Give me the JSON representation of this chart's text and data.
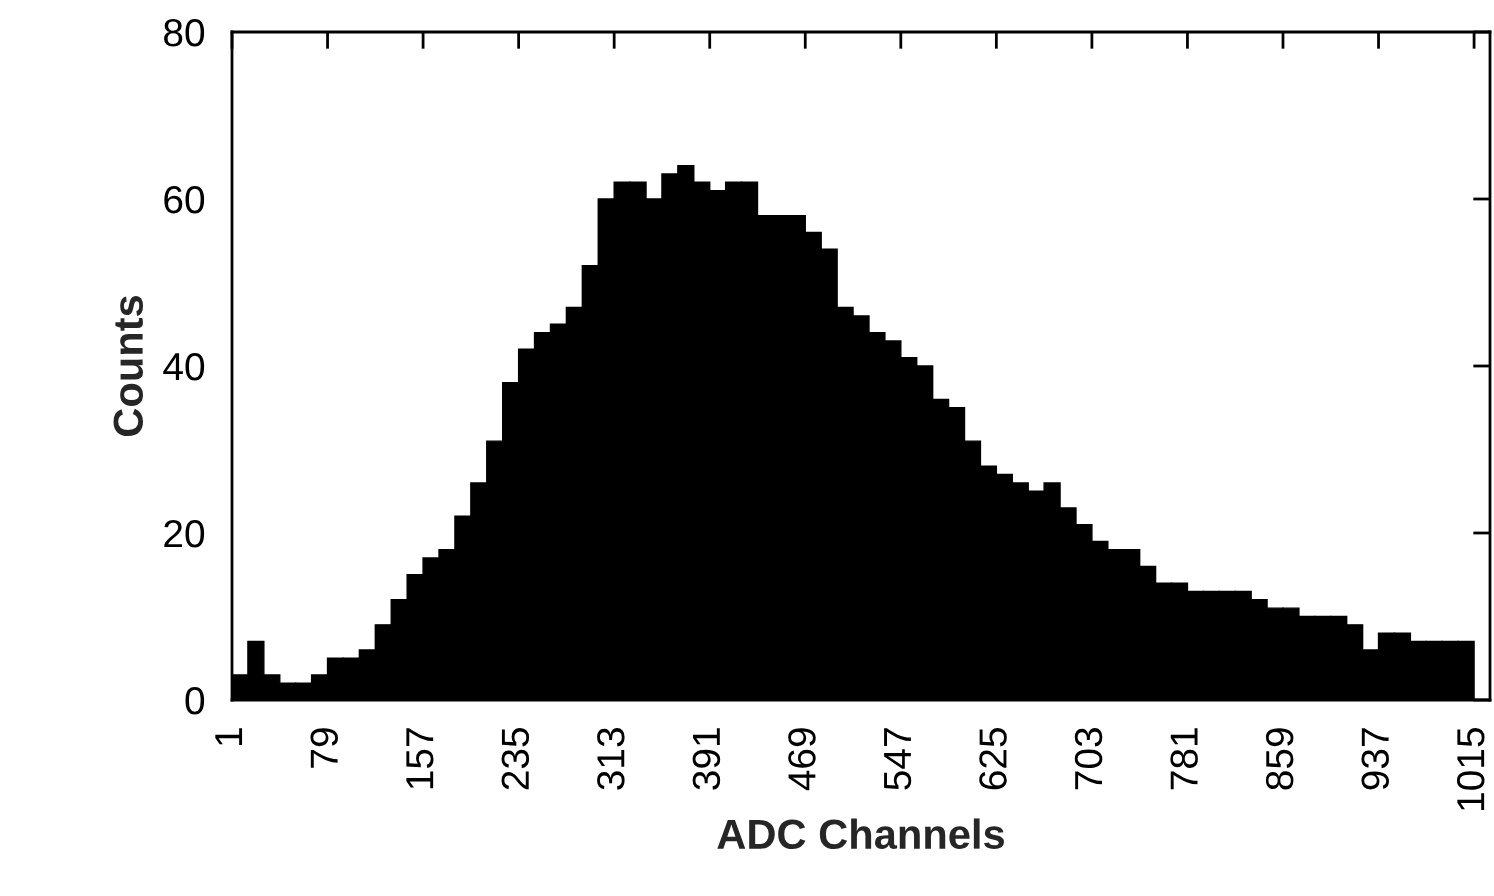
{
  "chart_data": {
    "type": "histogram",
    "xlabel": "ADC Channels",
    "ylabel": "Counts",
    "color": "#000000",
    "bins": [
      1,
      14,
      27,
      40,
      53,
      66,
      79,
      92,
      105,
      118,
      131,
      144,
      157,
      170,
      183,
      196,
      209,
      222,
      235,
      248,
      261,
      274,
      287,
      300,
      313,
      326,
      339,
      352,
      365,
      378,
      391,
      404,
      417,
      430,
      443,
      456,
      469,
      482,
      495,
      508,
      521,
      534,
      547,
      560,
      573,
      586,
      599,
      612,
      625,
      638,
      651,
      664,
      677,
      690,
      703,
      716,
      729,
      742,
      755,
      768,
      781,
      794,
      807,
      820,
      833,
      846,
      859,
      872,
      885,
      898,
      911,
      924,
      937,
      950,
      963,
      976,
      989,
      1002,
      1015
    ],
    "values": [
      3,
      7,
      3,
      2,
      2,
      3,
      5,
      5,
      6,
      9,
      12,
      15,
      17,
      18,
      22,
      26,
      31,
      38,
      42,
      44,
      45,
      47,
      52,
      60,
      62,
      62,
      60,
      63,
      64,
      62,
      61,
      62,
      62,
      58,
      58,
      58,
      56,
      54,
      47,
      46,
      44,
      43,
      41,
      40,
      36,
      35,
      31,
      28,
      27,
      26,
      25,
      26,
      23,
      21,
      19,
      18,
      18,
      16,
      14,
      14,
      13,
      13,
      13,
      13,
      12,
      11,
      11,
      10,
      10,
      10,
      9,
      6,
      8,
      8,
      7,
      7,
      7,
      7
    ],
    "xlim": [
      1,
      1028
    ],
    "ylim": [
      0,
      80
    ],
    "xticks": [
      1,
      79,
      157,
      235,
      313,
      391,
      469,
      547,
      625,
      703,
      781,
      859,
      937,
      1015
    ],
    "yticks": [
      0,
      20,
      40,
      60,
      80
    ]
  }
}
